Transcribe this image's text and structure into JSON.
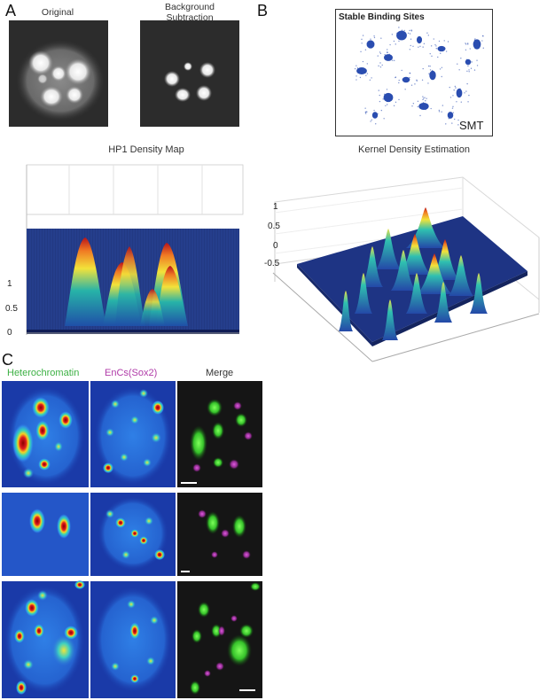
{
  "panels": {
    "a": {
      "letter": "A",
      "original_label": "Original",
      "bg_label_line1": "Background",
      "bg_label_line2": "Subtraction",
      "density_title": "HP1 Density Map",
      "z_ticks": [
        "1",
        "0.5",
        "0"
      ]
    },
    "b": {
      "letter": "B",
      "smt_title": "Stable Binding Sites",
      "smt_tag": "SMT",
      "kde_title": "Kernel Density Estimation",
      "z_ticks": [
        "1",
        "0.5",
        "0",
        "-0.5"
      ]
    },
    "c": {
      "letter": "C",
      "col1": "Heterochromatin",
      "col2": "EnCs(Sox2)",
      "col3": "Merge"
    }
  },
  "colors": {
    "heterochromatin_label": "#3cb043",
    "encs_label": "#b03aa8",
    "surface_base": "#1b2f7a",
    "smt_points": "#2a4db0"
  }
}
